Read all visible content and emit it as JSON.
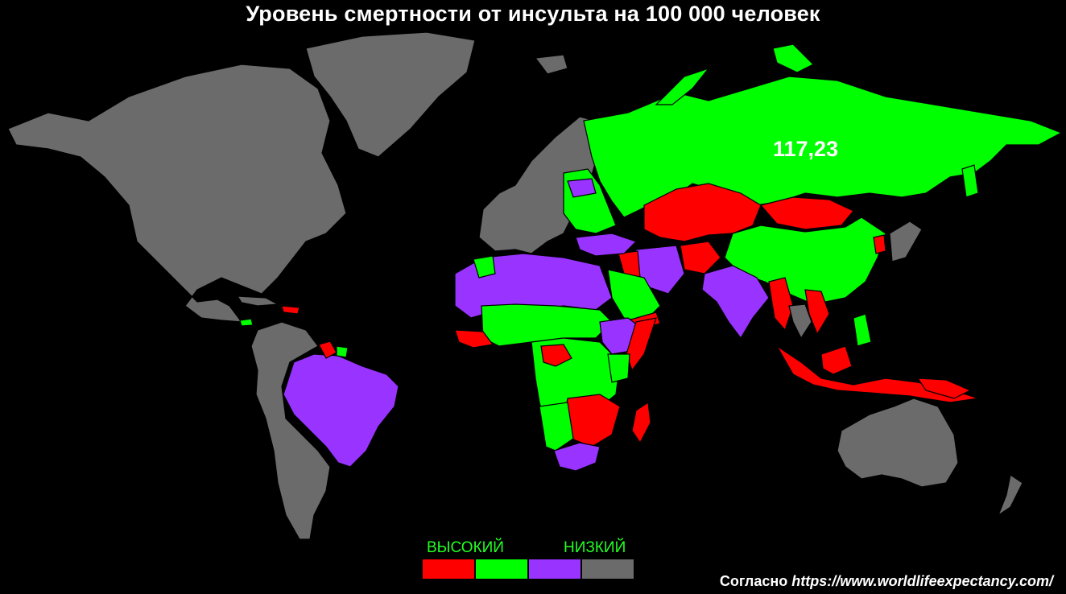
{
  "title": "Уровень смертности от инсульта на 100 000 человек",
  "highlight_value": "117,23",
  "legend": {
    "high_label": "ВЫСОКИЙ",
    "low_label": "НИЗКИЙ",
    "label_color": "#22ff22",
    "swatches": [
      {
        "name": "red",
        "color": "#ff0000"
      },
      {
        "name": "green",
        "color": "#00ff00"
      },
      {
        "name": "purple",
        "color": "#9933ff"
      },
      {
        "name": "gray",
        "color": "#6b6b6b"
      }
    ]
  },
  "source": {
    "prefix": "Согласно",
    "url": "https://www.worldlifeexpectancy.com/"
  },
  "colors": {
    "background": "#000000",
    "red": "#ff0000",
    "green": "#00ff00",
    "purple": "#9933ff",
    "gray": "#6b6b6b",
    "border": "#000000"
  }
}
